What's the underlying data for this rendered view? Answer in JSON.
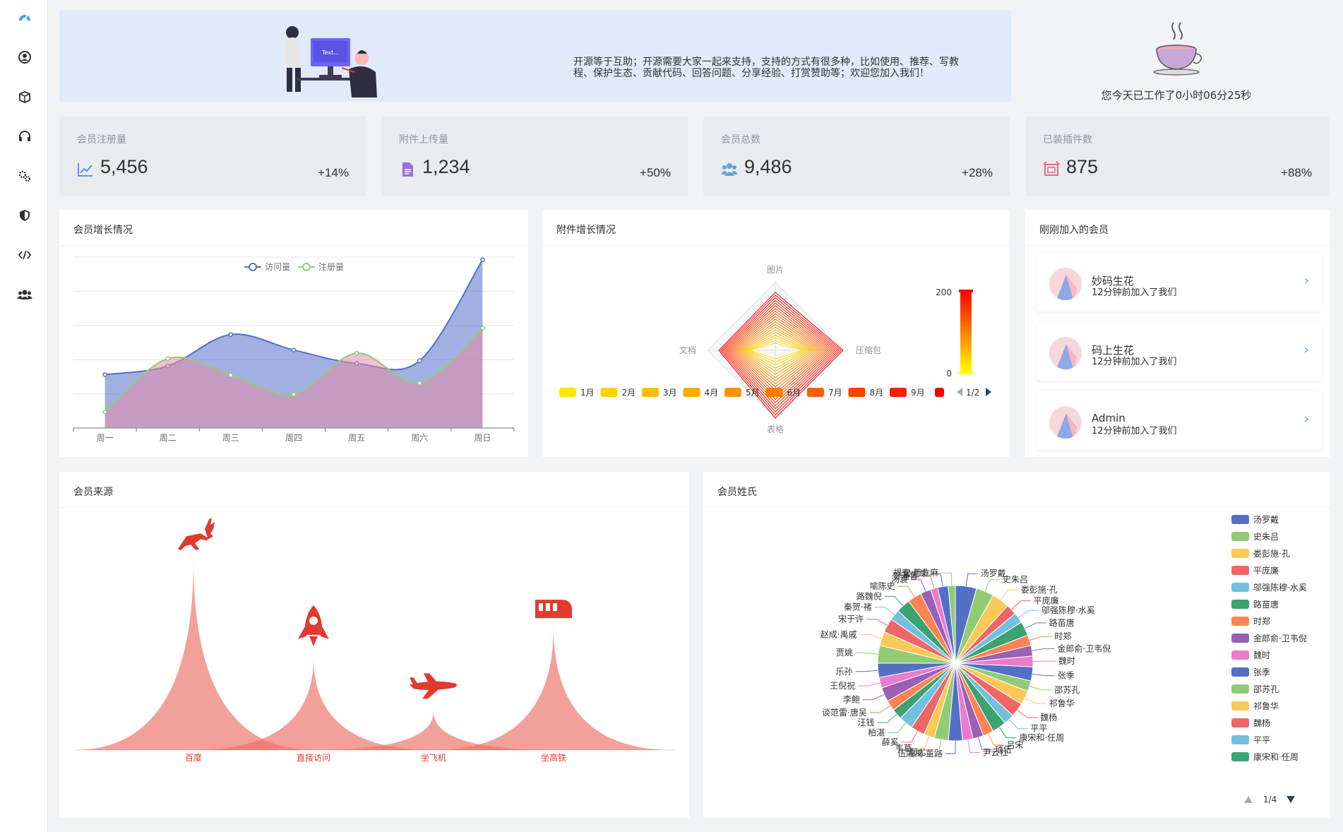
{
  "sidebar": {
    "items": [
      {
        "name": "dashboard-icon"
      },
      {
        "name": "user-icon"
      },
      {
        "name": "box-icon"
      },
      {
        "name": "headset-icon"
      },
      {
        "name": "gears-icon"
      },
      {
        "name": "shield-icon"
      },
      {
        "name": "code-icon"
      },
      {
        "name": "users-icon"
      }
    ]
  },
  "banner": {
    "illustration_text": "Text...",
    "message_line1": "开源等于互助；开源需要大家一起来支持，支持的方式有很多种，比如使用、推荐、写教",
    "message_line2": "程、保护生态、贡献代码、回答问题、分享经验、打赏赞助等；欢迎您加入我们！"
  },
  "work": {
    "text": "您今天已工作了0小时06分25秒"
  },
  "stats": [
    {
      "label": "会员注册量",
      "value": "5,456",
      "change": "+14%",
      "icon": "chart-line-icon",
      "color": "#5b8ff9"
    },
    {
      "label": "附件上传量",
      "value": "1,234",
      "change": "+50%",
      "icon": "file-icon",
      "color": "#9c6fe0"
    },
    {
      "label": "会员总数",
      "value": "9,486",
      "change": "+28%",
      "icon": "users-icon",
      "color": "#67a3c9"
    },
    {
      "label": "已装插件数",
      "value": "875",
      "change": "+88%",
      "icon": "plugin-icon",
      "color": "#e86a8a"
    }
  ],
  "growth_card": {
    "title": "会员增长情况"
  },
  "attach_card": {
    "title": "附件增长情况"
  },
  "recent_card": {
    "title": "刚刚加入的会员",
    "members": [
      {
        "name": "妙码生花",
        "time": "12分钟前加入了我们"
      },
      {
        "name": "码上生花",
        "time": "12分钟前加入了我们"
      },
      {
        "name": "Admin",
        "time": "12分钟前加入了我们"
      }
    ]
  },
  "source_card": {
    "title": "会员来源"
  },
  "surname_card": {
    "title": "会员姓氏"
  },
  "chart_data": [
    {
      "type": "area",
      "title": "会员增长情况",
      "categories": [
        "周一",
        "周二",
        "周三",
        "周四",
        "周五",
        "周六",
        "周日"
      ],
      "legend": [
        "访问量",
        "注册量"
      ],
      "ylim": [
        0,
        200
      ],
      "series": [
        {
          "name": "访问量",
          "values": [
            100,
            116,
            175,
            146,
            121,
            126,
            315
          ],
          "color": "#5470c6"
        },
        {
          "name": "注册量",
          "values": [
            30,
            130,
            99,
            63,
            140,
            84,
            187
          ],
          "color": "#91cc75"
        }
      ]
    },
    {
      "type": "radar",
      "title": "附件增长情况",
      "indicators": [
        "图片",
        "压缩包",
        "表格",
        "文档"
      ],
      "legend": [
        "1月",
        "2月",
        "3月",
        "4月",
        "5月",
        "6月",
        "7月",
        "8月",
        "9月"
      ],
      "legend_page": "1/2",
      "visual_map": {
        "min": 0,
        "max": 200
      }
    },
    {
      "type": "pictorial-bar",
      "title": "会员来源",
      "categories": [
        "百度",
        "直接访问",
        "坐飞机",
        "坐高铁"
      ],
      "values": [
        123,
        60,
        25,
        80
      ],
      "icons": [
        "deer-icon",
        "rocket-icon",
        "plane-icon",
        "train-icon"
      ]
    },
    {
      "type": "pie",
      "title": "会员姓氏",
      "legend_page": "1/4",
      "legend": [
        "汤罗戴",
        "史朱吕",
        "娄彭施·孔",
        "平庞廉",
        "邬强陈穆·水奚",
        "路苗唐",
        "时郑",
        "金郎俞·卫韦倪",
        "魏时",
        "张季",
        "邵苏孔",
        "祁鲁华",
        "魏杨",
        "平平",
        "康宋和·任周"
      ],
      "slices": [
        {
          "label": "汤罗戴",
          "value": 6
        },
        {
          "label": "史朱吕",
          "value": 5
        },
        {
          "label": "娄彭施·孔",
          "value": 5
        },
        {
          "label": "平庞廉",
          "value": 3
        },
        {
          "label": "邬强陈穆·水奚",
          "value": 3
        },
        {
          "label": "路苗唐",
          "value": 4
        },
        {
          "label": "时郑",
          "value": 3
        },
        {
          "label": "金郎俞·卫韦倪",
          "value": 3
        },
        {
          "label": "魏时",
          "value": 3
        },
        {
          "label": "张季",
          "value": 4
        },
        {
          "label": "邵苏孔",
          "value": 3
        },
        {
          "label": "祁鲁华",
          "value": 4
        },
        {
          "label": "魏杨",
          "value": 4
        },
        {
          "label": "平平",
          "value": 3
        },
        {
          "label": "康宋和·任周",
          "value": 4
        },
        {
          "label": "吕宋",
          "value": 3
        },
        {
          "label": "项伍",
          "value": 3
        },
        {
          "label": "尹云杜",
          "value": 3
        },
        {
          "label": "伍戚禹·董路",
          "value": 4
        },
        {
          "label": "鄢尤",
          "value": 4
        },
        {
          "label": "韦葛",
          "value": 3
        },
        {
          "label": "薛奚",
          "value": 4
        },
        {
          "label": "柏湛",
          "value": 4
        },
        {
          "label": "汪钱",
          "value": 3
        },
        {
          "label": "谈范雷·唐吴",
          "value": 3
        },
        {
          "label": "李鲍",
          "value": 4
        },
        {
          "label": "王倪祝",
          "value": 3
        },
        {
          "label": "乐孙",
          "value": 4
        },
        {
          "label": "贾姚",
          "value": 5
        },
        {
          "label": "赵成·禹戚",
          "value": 4
        },
        {
          "label": "宋于许",
          "value": 4
        },
        {
          "label": "秦贺·褚",
          "value": 3
        },
        {
          "label": "路魏倪",
          "value": 4
        },
        {
          "label": "喻陈史",
          "value": 4
        },
        {
          "label": "汤袁",
          "value": 3
        },
        {
          "label": "贺潘鲁",
          "value": 2
        },
        {
          "label": "常尤毕",
          "value": 3
        },
        {
          "label": "褐安·萧危麻",
          "value": 2
        }
      ]
    }
  ]
}
